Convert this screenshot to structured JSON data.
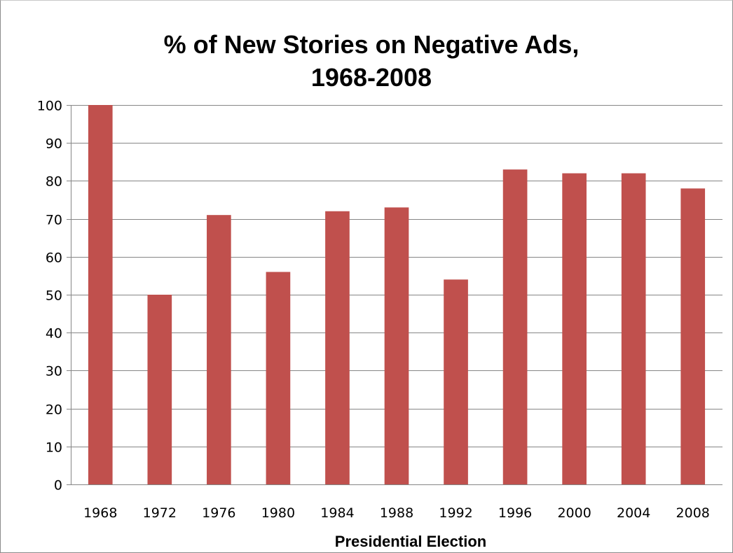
{
  "chart_data": {
    "type": "bar",
    "title_lines": [
      "% of New Stories on Negative Ads,",
      "1968-2008"
    ],
    "xlabel": "Presidential Election",
    "ylabel": "",
    "categories": [
      "1968",
      "1972",
      "1976",
      "1980",
      "1984",
      "1988",
      "1992",
      "1996",
      "2000",
      "2004",
      "2008"
    ],
    "values": [
      100,
      50,
      71,
      56,
      72,
      73,
      54,
      83,
      82,
      82,
      78
    ],
    "ylim": [
      0,
      100
    ],
    "yticks": [
      0,
      10,
      20,
      30,
      40,
      50,
      60,
      70,
      80,
      90,
      100
    ],
    "grid": true,
    "legend": "none",
    "colors": {
      "bar": "#c0504d",
      "grid": "#868686",
      "axis": "#868686"
    }
  }
}
